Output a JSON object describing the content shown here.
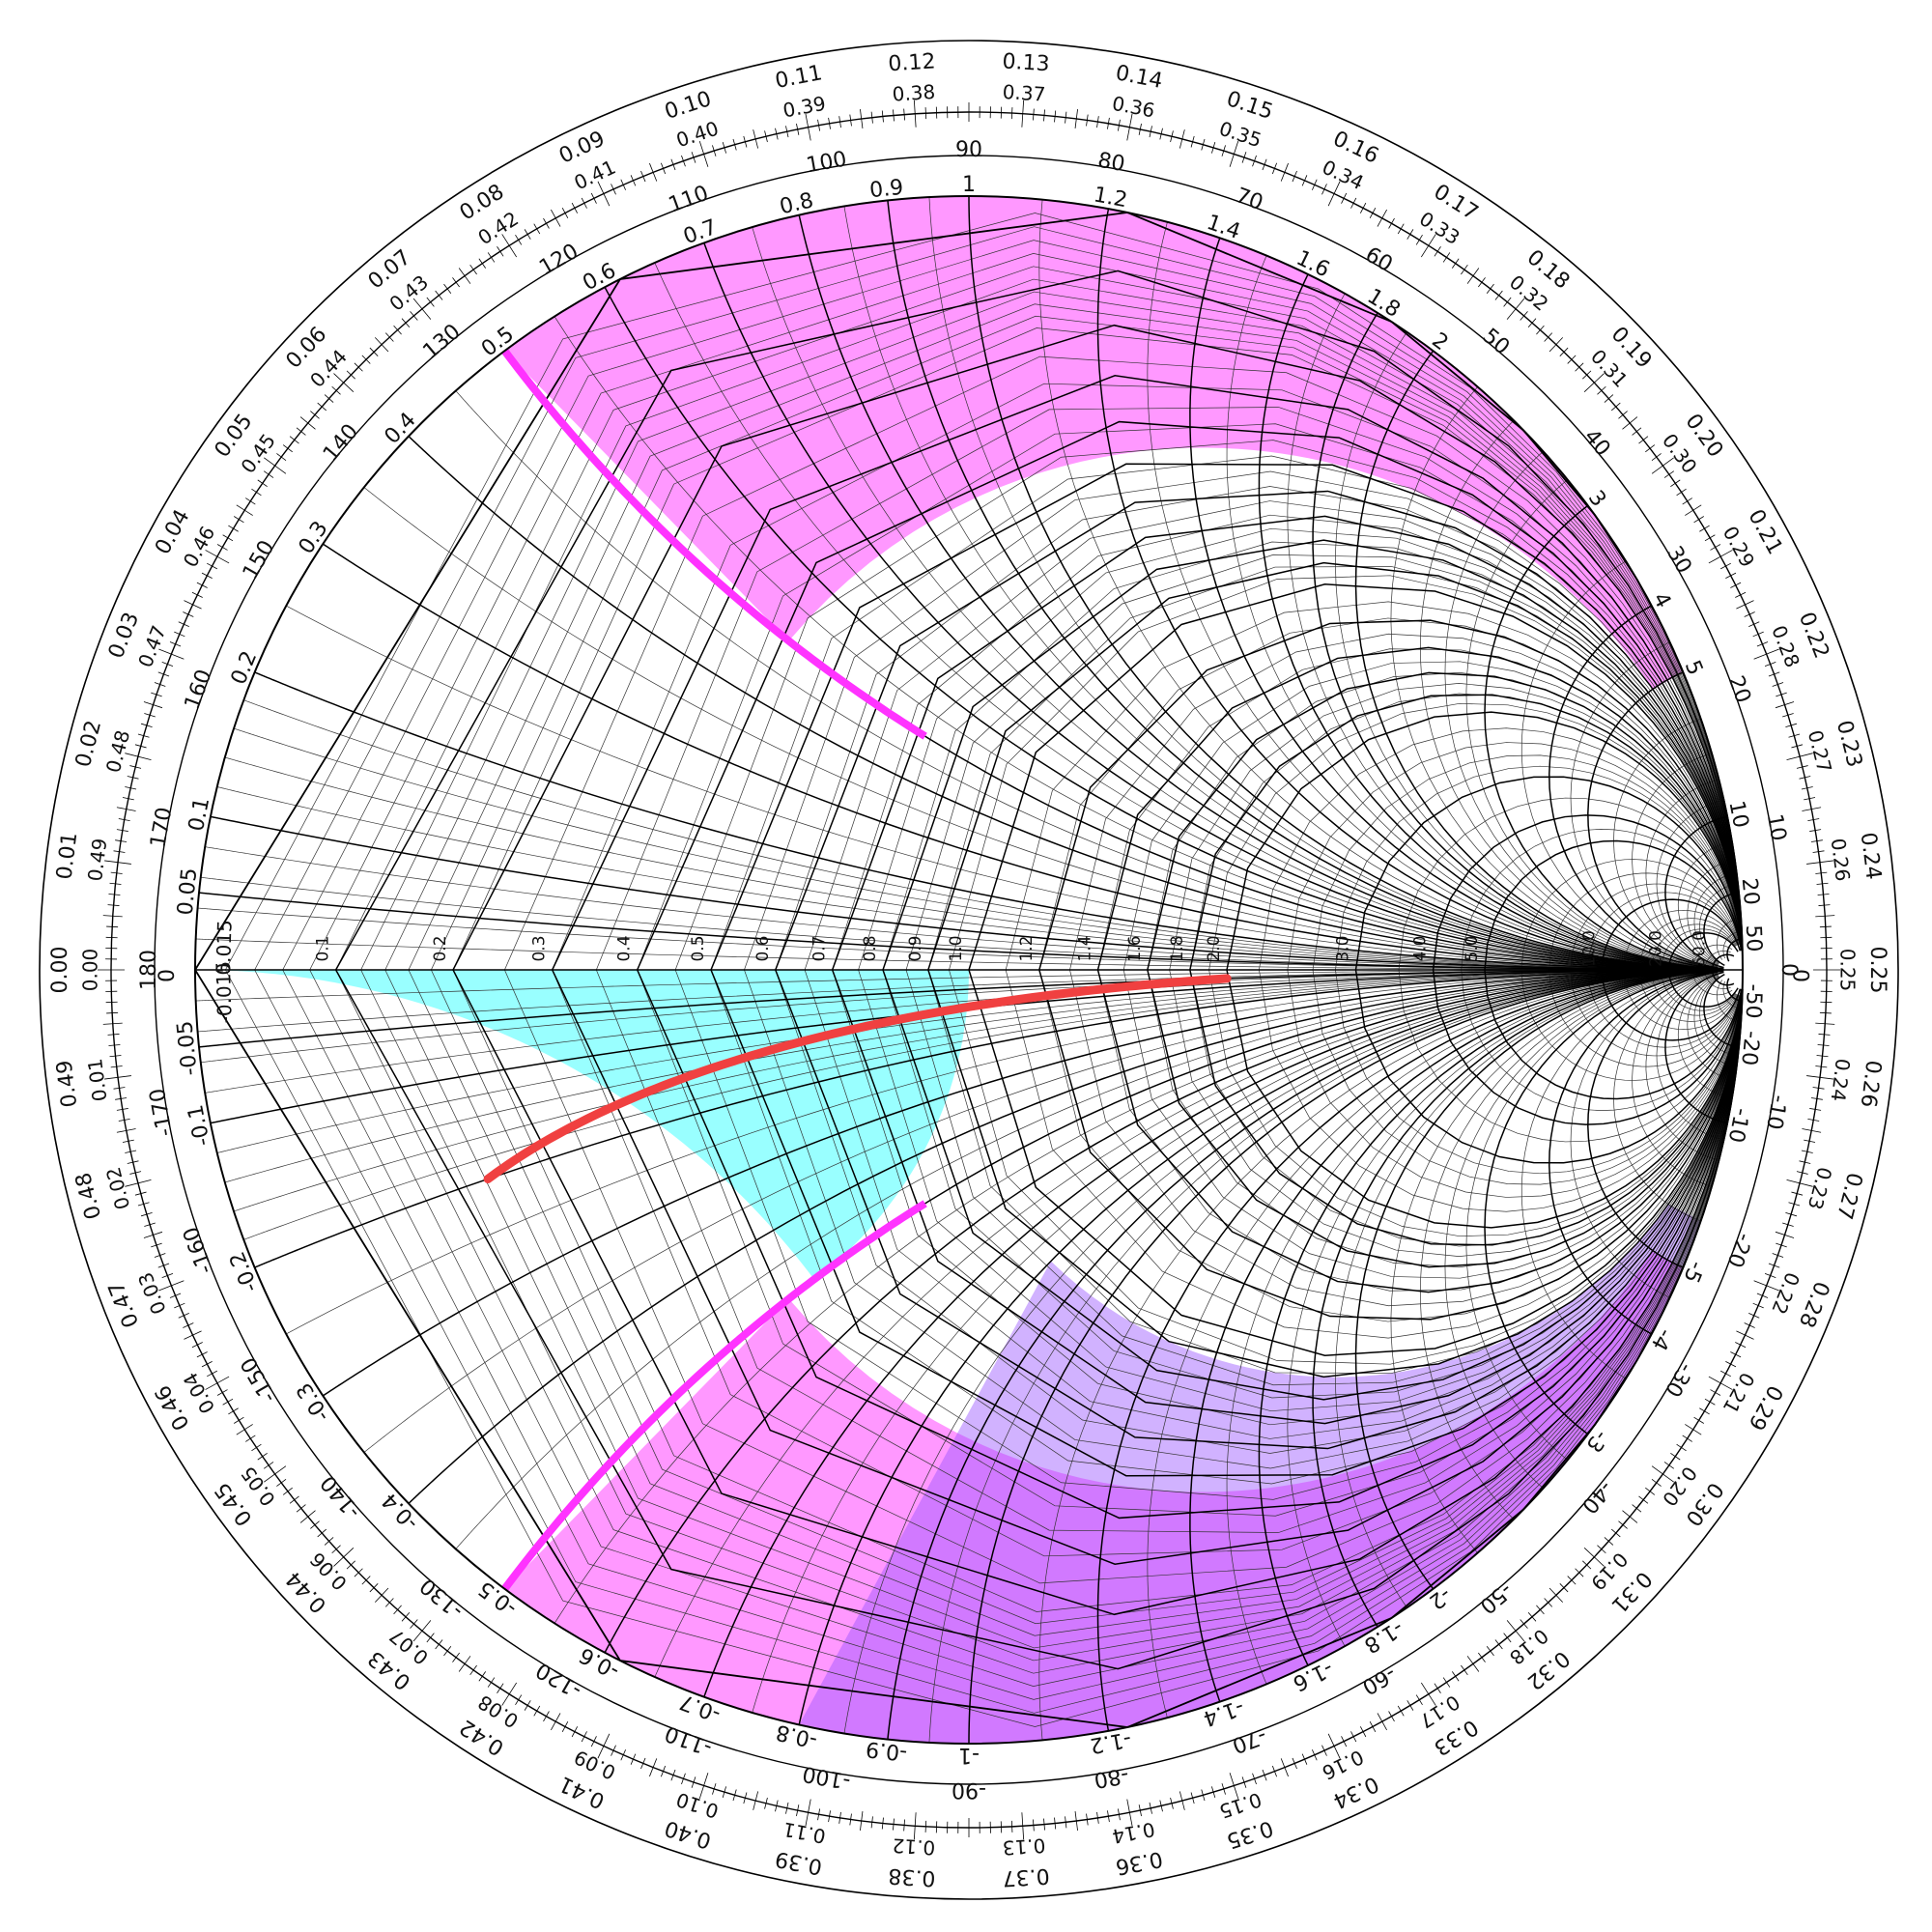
{
  "chart_data": {
    "type": "smith-chart",
    "colors": {
      "grid_major": "#000000",
      "grid_minor": "#333333",
      "region_magenta": "#ff44ff",
      "region_cyan": "#33ffff",
      "region_purple": "#9955ff",
      "boundary_magenta": "#ff33ff",
      "path_red": "#f04040"
    },
    "resistance_labels": [
      {
        "value": 0.1,
        "text": "0.1"
      },
      {
        "value": 0.2,
        "text": "0.2"
      },
      {
        "value": 0.3,
        "text": "0.3"
      },
      {
        "value": 0.4,
        "text": "0.4"
      },
      {
        "value": 0.5,
        "text": "0.5"
      },
      {
        "value": 0.6,
        "text": "0.6"
      },
      {
        "value": 0.7,
        "text": "0.7"
      },
      {
        "value": 0.8,
        "text": "0.8"
      },
      {
        "value": 0.9,
        "text": "0.9"
      },
      {
        "value": 1.0,
        "text": "1.0"
      },
      {
        "value": 1.2,
        "text": "1.2"
      },
      {
        "value": 1.4,
        "text": "1.4"
      },
      {
        "value": 1.6,
        "text": "1.6"
      },
      {
        "value": 1.8,
        "text": "1.8"
      },
      {
        "value": 2.0,
        "text": "2.0"
      },
      {
        "value": 3.0,
        "text": "3.0"
      },
      {
        "value": 4.0,
        "text": "4.0"
      },
      {
        "value": 5.0,
        "text": "5.0"
      },
      {
        "value": 10.0,
        "text": "10.0"
      },
      {
        "value": 20.0,
        "text": "20.0"
      },
      {
        "value": 50.0,
        "text": "50.0"
      }
    ],
    "reactance_labels": [
      {
        "value": 0.05,
        "text": "0.05"
      },
      {
        "value": 0.1,
        "text": "0.1"
      },
      {
        "value": 0.2,
        "text": "0.2"
      },
      {
        "value": 0.3,
        "text": "0.3"
      },
      {
        "value": 0.4,
        "text": "0.4"
      },
      {
        "value": 0.5,
        "text": "0.5"
      },
      {
        "value": 0.6,
        "text": "0.6"
      },
      {
        "value": 0.7,
        "text": "0.7"
      },
      {
        "value": 0.8,
        "text": "0.8"
      },
      {
        "value": 0.9,
        "text": "0.9"
      },
      {
        "value": 1,
        "text": "1"
      },
      {
        "value": 1.2,
        "text": "1.2"
      },
      {
        "value": 1.4,
        "text": "1.4"
      },
      {
        "value": 1.6,
        "text": "1.6"
      },
      {
        "value": 1.8,
        "text": "1.8"
      },
      {
        "value": 2,
        "text": "2"
      },
      {
        "value": 3,
        "text": "3"
      },
      {
        "value": 4,
        "text": "4"
      },
      {
        "value": 5,
        "text": "5"
      },
      {
        "value": 10,
        "text": "10"
      },
      {
        "value": 20,
        "text": "20"
      },
      {
        "value": 50,
        "text": "50"
      },
      {
        "value": -0.05,
        "text": "-0.05"
      },
      {
        "value": -0.1,
        "text": "-0.1"
      },
      {
        "value": -0.2,
        "text": "-0.2"
      },
      {
        "value": -0.3,
        "text": "-0.3"
      },
      {
        "value": -0.4,
        "text": "-0.4"
      },
      {
        "value": -0.5,
        "text": "-0.5"
      },
      {
        "value": -0.6,
        "text": "-0.6"
      },
      {
        "value": -0.7,
        "text": "-0.7"
      },
      {
        "value": -0.8,
        "text": "-0.8"
      },
      {
        "value": -0.9,
        "text": "-0.9"
      },
      {
        "value": -1,
        "text": "-1"
      },
      {
        "value": -1.2,
        "text": "-1.2"
      },
      {
        "value": -1.4,
        "text": "-1.4"
      },
      {
        "value": -1.6,
        "text": "-1.6"
      },
      {
        "value": -1.8,
        "text": "-1.8"
      },
      {
        "value": -2,
        "text": "-2"
      },
      {
        "value": -3,
        "text": "-3"
      },
      {
        "value": -4,
        "text": "-4"
      },
      {
        "value": -5,
        "text": "-5"
      },
      {
        "value": -10,
        "text": "-10"
      },
      {
        "value": -20,
        "text": "-20"
      },
      {
        "value": -50,
        "text": "-50"
      }
    ],
    "origin_labels": {
      "zero_left": "0",
      "zero_right": "0",
      "inner_015_pos": "0.015",
      "inner_015_neg": "-0.015"
    },
    "angle_labels": [
      "180",
      "170",
      "160",
      "150",
      "140",
      "130",
      "120",
      "110",
      "100",
      "90",
      "80",
      "70",
      "60",
      "50",
      "40",
      "30",
      "20",
      "10",
      "0",
      "-10",
      "-20",
      "-30",
      "-40",
      "-50",
      "-60",
      "-70",
      "-80",
      "-90",
      "-100",
      "-110",
      "-120",
      "-130",
      "-140",
      "-150",
      "-160",
      "-170"
    ],
    "wavelength_toward_generator": [
      "0.00",
      "0.01",
      "0.02",
      "0.03",
      "0.04",
      "0.05",
      "0.06",
      "0.07",
      "0.08",
      "0.09",
      "0.10",
      "0.11",
      "0.12",
      "0.13",
      "0.14",
      "0.15",
      "0.16",
      "0.17",
      "0.18",
      "0.19",
      "0.20",
      "0.21",
      "0.22",
      "0.23",
      "0.24",
      "0.25",
      "0.26",
      "0.27",
      "0.28",
      "0.29",
      "0.30",
      "0.31",
      "0.32",
      "0.33",
      "0.34",
      "0.35",
      "0.36",
      "0.37",
      "0.38",
      "0.39",
      "0.40",
      "0.41",
      "0.42",
      "0.43",
      "0.44",
      "0.45",
      "0.46",
      "0.47",
      "0.48",
      "0.49"
    ],
    "wavelength_toward_load": [
      "0.00",
      "0.01",
      "0.02",
      "0.03",
      "0.04",
      "0.05",
      "0.06",
      "0.07",
      "0.08",
      "0.09",
      "0.10",
      "0.11",
      "0.12",
      "0.13",
      "0.14",
      "0.15",
      "0.16",
      "0.17",
      "0.18",
      "0.19",
      "0.20",
      "0.21",
      "0.22",
      "0.23",
      "0.24",
      "0.25",
      "0.26",
      "0.27",
      "0.28",
      "0.29",
      "0.30",
      "0.31",
      "0.32",
      "0.33",
      "0.34",
      "0.35",
      "0.36",
      "0.37",
      "0.38",
      "0.39",
      "0.40",
      "0.41",
      "0.42",
      "0.43",
      "0.44",
      "0.45",
      "0.46",
      "0.47",
      "0.48",
      "0.49"
    ],
    "regions": [
      {
        "name": "magenta-band",
        "shape": "admittance-circle-exterior",
        "g_value": 0.5,
        "condition": "|x| >= 0.5"
      },
      {
        "name": "cyan-lens",
        "shape": "admittance-disk",
        "b_range": [
          0,
          1
        ],
        "g_min": 1
      },
      {
        "name": "purple-overlap",
        "shape": "lower-band",
        "condition": "x <= -0.8"
      }
    ],
    "red_path": {
      "r_start": 0.2,
      "x_start": -0.2,
      "r_end": 2.0,
      "x_end": -0.05
    },
    "magenta_boundary": {
      "g": 0.5,
      "b_span": [
        0.5,
        0.5
      ]
    }
  }
}
